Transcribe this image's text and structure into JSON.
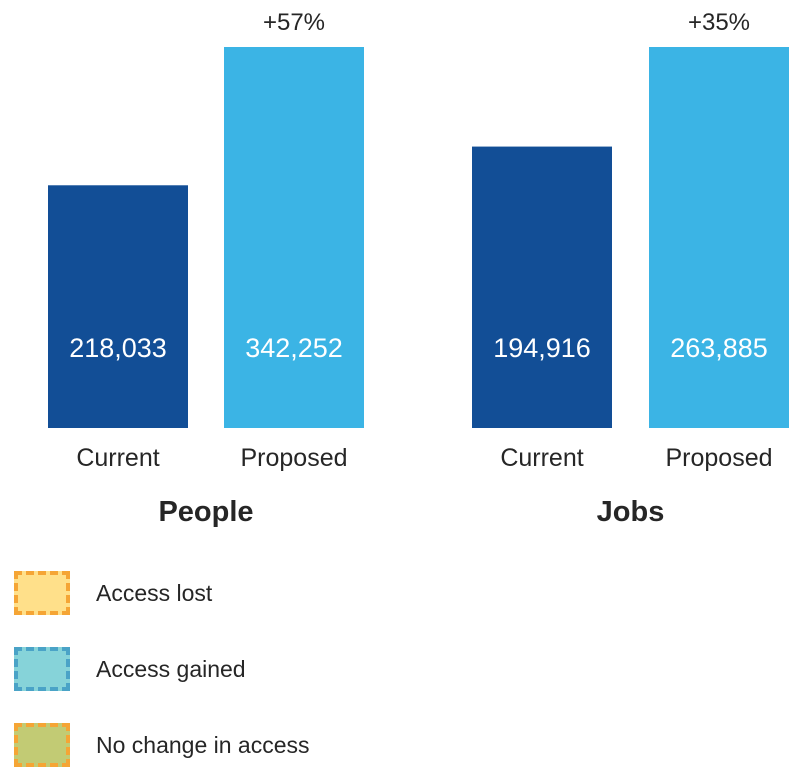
{
  "chart_data": [
    {
      "type": "bar",
      "title": "People",
      "categories": [
        "Current",
        "Proposed"
      ],
      "values": [
        218033,
        342252
      ],
      "value_labels": [
        "218,033",
        "342,252"
      ],
      "change_label": "+57%",
      "ylim": [
        0,
        360000
      ],
      "colors": [
        "#124E96",
        "#3BB4E5"
      ],
      "grid": false
    },
    {
      "type": "bar",
      "title": "Jobs",
      "categories": [
        "Current",
        "Proposed"
      ],
      "values": [
        194916,
        263885
      ],
      "value_labels": [
        "194,916",
        "263,885"
      ],
      "change_label": "+35%",
      "ylim": [
        0,
        360000
      ],
      "colors": [
        "#124E96",
        "#3BB4E5"
      ],
      "grid": false
    }
  ],
  "legend": {
    "items": [
      {
        "label": "Access lost",
        "fill": "#FFE08A",
        "border": "#F5A535"
      },
      {
        "label": "Access gained",
        "fill": "#86D3D9",
        "border": "#4AA3C7"
      },
      {
        "label": "No change in access",
        "fill": "#C2CB74",
        "border": "#F5A535"
      }
    ]
  }
}
